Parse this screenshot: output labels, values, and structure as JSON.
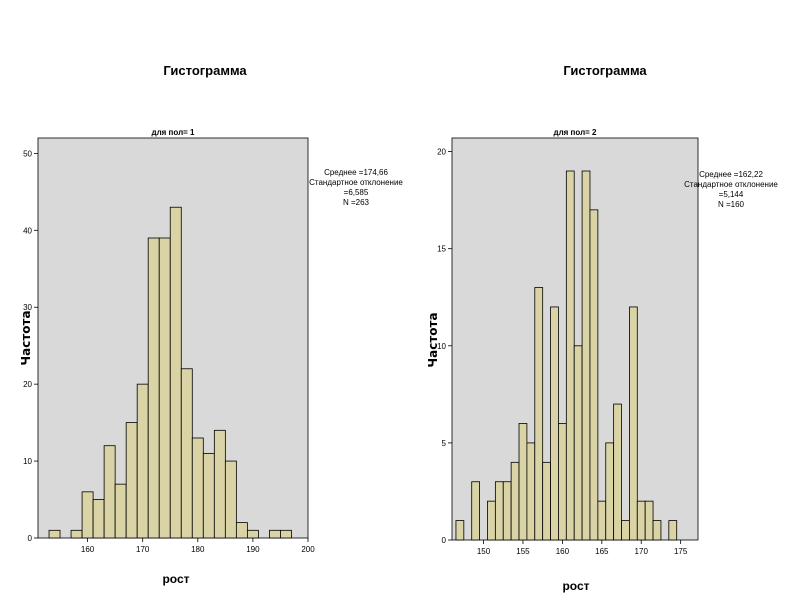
{
  "chart_data": [
    {
      "type": "bar",
      "title": "Гистограмма",
      "subtitle": "для пол= 1",
      "xlabel": "рост",
      "ylabel": "Частота",
      "xlim": [
        151,
        200
      ],
      "ylim": [
        0,
        52
      ],
      "xticks": [
        160,
        170,
        180,
        190,
        200
      ],
      "yticks": [
        0,
        10,
        20,
        30,
        40,
        50
      ],
      "bin_width": 2,
      "bins": [
        {
          "x": 154,
          "value": 1
        },
        {
          "x": 156,
          "value": 0
        },
        {
          "x": 158,
          "value": 1
        },
        {
          "x": 160,
          "value": 6
        },
        {
          "x": 162,
          "value": 5
        },
        {
          "x": 164,
          "value": 12
        },
        {
          "x": 166,
          "value": 7
        },
        {
          "x": 168,
          "value": 15
        },
        {
          "x": 170,
          "value": 20
        },
        {
          "x": 172,
          "value": 39
        },
        {
          "x": 174,
          "value": 39
        },
        {
          "x": 176,
          "value": 43
        },
        {
          "x": 178,
          "value": 22
        },
        {
          "x": 180,
          "value": 13
        },
        {
          "x": 182,
          "value": 11
        },
        {
          "x": 184,
          "value": 14
        },
        {
          "x": 186,
          "value": 10
        },
        {
          "x": 188,
          "value": 2
        },
        {
          "x": 190,
          "value": 1
        },
        {
          "x": 192,
          "value": 0
        },
        {
          "x": 194,
          "value": 1
        },
        {
          "x": 196,
          "value": 1
        }
      ],
      "stats": [
        "Среднее =174,66",
        "Стандартное отклонение",
        "=6,585",
        "N =263"
      ],
      "grid": false
    },
    {
      "type": "bar",
      "title": "Гистограмма",
      "subtitle": "для пол= 2",
      "xlabel": "рост",
      "ylabel": "Частота",
      "xlim": [
        146,
        177.2
      ],
      "ylim": [
        0,
        20.7
      ],
      "xticks": [
        150,
        155,
        160,
        165,
        170,
        175
      ],
      "yticks": [
        0,
        5,
        10,
        15,
        20
      ],
      "bin_width": 1,
      "bins": [
        {
          "x": 147,
          "value": 1
        },
        {
          "x": 148,
          "value": 0
        },
        {
          "x": 149,
          "value": 3
        },
        {
          "x": 150,
          "value": 0
        },
        {
          "x": 151,
          "value": 2
        },
        {
          "x": 152,
          "value": 3
        },
        {
          "x": 153,
          "value": 3
        },
        {
          "x": 154,
          "value": 4
        },
        {
          "x": 155,
          "value": 6
        },
        {
          "x": 156,
          "value": 5
        },
        {
          "x": 157,
          "value": 13
        },
        {
          "x": 158,
          "value": 4
        },
        {
          "x": 159,
          "value": 12
        },
        {
          "x": 160,
          "value": 6
        },
        {
          "x": 161,
          "value": 19
        },
        {
          "x": 162,
          "value": 10
        },
        {
          "x": 163,
          "value": 19
        },
        {
          "x": 164,
          "value": 17
        },
        {
          "x": 165,
          "value": 2
        },
        {
          "x": 166,
          "value": 5
        },
        {
          "x": 167,
          "value": 7
        },
        {
          "x": 168,
          "value": 1
        },
        {
          "x": 169,
          "value": 12
        },
        {
          "x": 170,
          "value": 2
        },
        {
          "x": 171,
          "value": 2
        },
        {
          "x": 172,
          "value": 1
        },
        {
          "x": 173,
          "value": 0
        },
        {
          "x": 174,
          "value": 1
        }
      ],
      "stats": [
        "Среднее =162,22",
        "Стандартное отклонение",
        "=5,144",
        "N =160"
      ],
      "grid": false
    }
  ],
  "colors": {
    "plot_bg": "#d9d9d9",
    "bar_fill": "#d9d3a6",
    "bar_stroke": "#000000",
    "axis": "#000000"
  }
}
